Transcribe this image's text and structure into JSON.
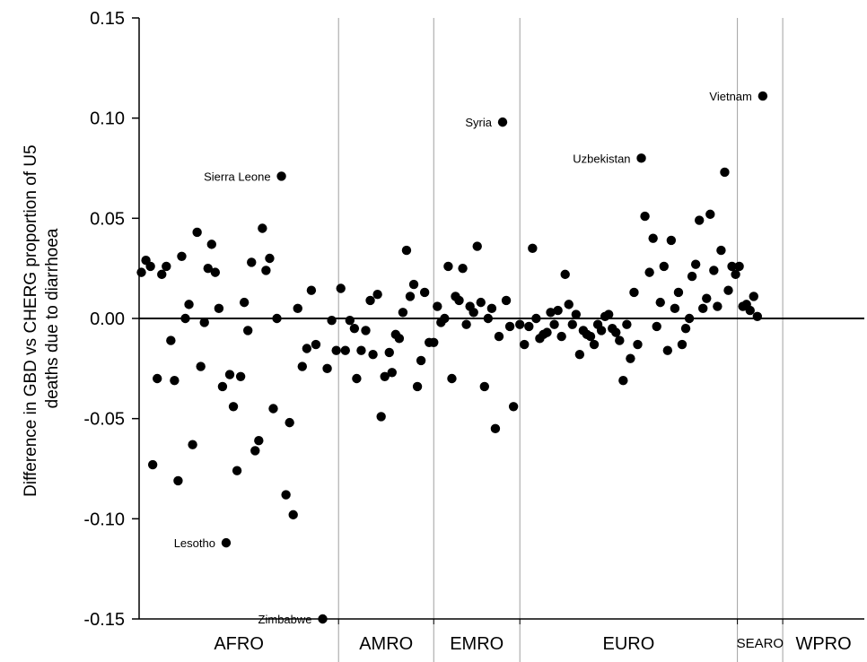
{
  "chart_data": {
    "type": "scatter",
    "title": "",
    "xlabel": "",
    "ylabel_lines": [
      "Difference in GBD vs CHERG proportion of U5",
      "deaths due to diarrhoea"
    ],
    "ylim": [
      -0.15,
      0.15
    ],
    "yticks": [
      "0.15",
      "0.10",
      "0.05",
      "0.00",
      "-0.05",
      "-0.10",
      "-0.15"
    ],
    "ytick_values": [
      0.15,
      0.1,
      0.05,
      0.0,
      -0.05,
      -0.1,
      -0.15
    ],
    "xlim": [
      0,
      160
    ],
    "reference_line_y": 0.0,
    "grid": "vertical region separators",
    "regions": [
      {
        "name": "AFRO",
        "start": 0,
        "end": 44
      },
      {
        "name": "AMRO",
        "start": 44,
        "end": 65
      },
      {
        "name": "EMRO",
        "start": 65,
        "end": 84
      },
      {
        "name": "EURO",
        "start": 84,
        "end": 132
      },
      {
        "name": "SEARO",
        "start": 132,
        "end": 142
      },
      {
        "name": "WPRO",
        "start": 142,
        "end": 160
      }
    ],
    "points": [
      [
        0.5,
        0.023
      ],
      [
        1.5,
        0.029
      ],
      [
        2.5,
        0.026
      ],
      [
        3.0,
        -0.073
      ],
      [
        4.0,
        -0.03
      ],
      [
        5.0,
        0.022
      ],
      [
        6.0,
        0.026
      ],
      [
        7.0,
        -0.011
      ],
      [
        7.8,
        -0.031
      ],
      [
        8.6,
        -0.081
      ],
      [
        9.4,
        0.031
      ],
      [
        10.2,
        0.0
      ],
      [
        11.0,
        0.007
      ],
      [
        11.8,
        -0.063
      ],
      [
        12.8,
        0.043
      ],
      [
        13.6,
        -0.024
      ],
      [
        14.4,
        -0.002
      ],
      [
        15.2,
        0.025
      ],
      [
        16.0,
        0.037
      ],
      [
        16.8,
        0.023
      ],
      [
        17.6,
        0.005
      ],
      [
        18.4,
        -0.034
      ],
      [
        19.2,
        -0.112
      ],
      [
        20.0,
        -0.028
      ],
      [
        20.8,
        -0.044
      ],
      [
        21.6,
        -0.076
      ],
      [
        22.4,
        -0.029
      ],
      [
        23.2,
        0.008
      ],
      [
        24.0,
        -0.006
      ],
      [
        24.8,
        0.028
      ],
      [
        25.6,
        -0.066
      ],
      [
        26.4,
        -0.061
      ],
      [
        27.2,
        0.045
      ],
      [
        28.0,
        0.024
      ],
      [
        28.8,
        0.03
      ],
      [
        29.6,
        -0.045
      ],
      [
        30.4,
        0.0
      ],
      [
        31.4,
        0.071
      ],
      [
        32.4,
        -0.088
      ],
      [
        33.2,
        -0.052
      ],
      [
        34.0,
        -0.098
      ],
      [
        35.0,
        0.005
      ],
      [
        36.0,
        -0.024
      ],
      [
        37.0,
        -0.015
      ],
      [
        38.0,
        0.014
      ],
      [
        39.0,
        -0.013
      ],
      [
        40.5,
        -0.15
      ],
      [
        41.5,
        -0.025
      ],
      [
        42.5,
        -0.001
      ],
      [
        43.5,
        -0.016
      ],
      [
        44.5,
        0.015
      ],
      [
        45.5,
        -0.016
      ],
      [
        46.5,
        -0.001
      ],
      [
        47.5,
        -0.005
      ],
      [
        48.0,
        -0.03
      ],
      [
        49.0,
        -0.016
      ],
      [
        50.0,
        -0.006
      ],
      [
        51.0,
        0.009
      ],
      [
        51.6,
        -0.018
      ],
      [
        52.6,
        0.012
      ],
      [
        53.4,
        -0.049
      ],
      [
        54.2,
        -0.029
      ],
      [
        55.2,
        -0.017
      ],
      [
        55.8,
        -0.027
      ],
      [
        56.6,
        -0.008
      ],
      [
        57.4,
        -0.01
      ],
      [
        58.2,
        0.003
      ],
      [
        59.0,
        0.034
      ],
      [
        59.8,
        0.011
      ],
      [
        60.6,
        0.017
      ],
      [
        61.4,
        -0.034
      ],
      [
        62.2,
        -0.021
      ],
      [
        63.0,
        0.013
      ],
      [
        64.0,
        -0.012
      ],
      [
        65.0,
        -0.012
      ],
      [
        65.8,
        0.006
      ],
      [
        66.6,
        -0.002
      ],
      [
        67.4,
        0.0
      ],
      [
        68.2,
        0.026
      ],
      [
        69.0,
        -0.03
      ],
      [
        69.8,
        0.011
      ],
      [
        70.6,
        0.009
      ],
      [
        71.4,
        0.025
      ],
      [
        72.2,
        -0.003
      ],
      [
        73.0,
        0.006
      ],
      [
        73.8,
        0.003
      ],
      [
        74.6,
        0.036
      ],
      [
        75.4,
        0.008
      ],
      [
        76.2,
        -0.034
      ],
      [
        77.0,
        0.0
      ],
      [
        77.8,
        0.005
      ],
      [
        78.6,
        -0.055
      ],
      [
        79.4,
        -0.009
      ],
      [
        80.2,
        0.098
      ],
      [
        81.0,
        0.009
      ],
      [
        81.8,
        -0.004
      ],
      [
        82.6,
        -0.044
      ],
      [
        84.0,
        -0.003
      ],
      [
        85.0,
        -0.013
      ],
      [
        86.0,
        -0.004
      ],
      [
        86.8,
        0.035
      ],
      [
        87.6,
        0.0
      ],
      [
        88.4,
        -0.01
      ],
      [
        89.2,
        -0.008
      ],
      [
        90.0,
        -0.007
      ],
      [
        90.8,
        0.003
      ],
      [
        91.6,
        -0.003
      ],
      [
        92.4,
        0.004
      ],
      [
        93.2,
        -0.009
      ],
      [
        94.0,
        0.022
      ],
      [
        94.8,
        0.007
      ],
      [
        95.6,
        -0.003
      ],
      [
        96.4,
        0.002
      ],
      [
        97.2,
        -0.018
      ],
      [
        98.0,
        -0.006
      ],
      [
        98.8,
        -0.008
      ],
      [
        99.6,
        -0.009
      ],
      [
        100.4,
        -0.013
      ],
      [
        101.2,
        -0.003
      ],
      [
        102.0,
        -0.006
      ],
      [
        102.8,
        0.001
      ],
      [
        103.6,
        0.002
      ],
      [
        104.4,
        -0.005
      ],
      [
        105.2,
        -0.007
      ],
      [
        106.0,
        -0.011
      ],
      [
        106.8,
        -0.031
      ],
      [
        107.6,
        -0.003
      ],
      [
        108.4,
        -0.02
      ],
      [
        109.2,
        0.013
      ],
      [
        110.0,
        -0.013
      ],
      [
        110.8,
        0.08
      ],
      [
        111.6,
        0.051
      ],
      [
        112.6,
        0.023
      ],
      [
        113.4,
        0.04
      ],
      [
        114.2,
        -0.004
      ],
      [
        115.0,
        0.008
      ],
      [
        115.8,
        0.026
      ],
      [
        116.6,
        -0.016
      ],
      [
        117.4,
        0.039
      ],
      [
        118.2,
        0.005
      ],
      [
        119.0,
        0.013
      ],
      [
        119.8,
        -0.013
      ],
      [
        120.6,
        -0.005
      ],
      [
        121.4,
        0.0
      ],
      [
        122.0,
        0.021
      ],
      [
        122.8,
        0.027
      ],
      [
        123.6,
        0.049
      ],
      [
        124.4,
        0.005
      ],
      [
        125.2,
        0.01
      ],
      [
        126.0,
        0.052
      ],
      [
        126.8,
        0.024
      ],
      [
        127.6,
        0.006
      ],
      [
        128.4,
        0.034
      ],
      [
        129.2,
        0.073
      ],
      [
        130.0,
        0.014
      ],
      [
        130.8,
        0.026
      ],
      [
        131.6,
        0.022
      ],
      [
        132.4,
        0.026
      ],
      [
        133.2,
        0.006
      ],
      [
        134.0,
        0.007
      ],
      [
        134.8,
        0.004
      ],
      [
        135.6,
        0.011
      ],
      [
        136.4,
        0.001
      ],
      [
        137.6,
        0.111
      ]
    ],
    "annotations": [
      {
        "text": "Sierra Leone",
        "x": 31.4,
        "y": 0.071
      },
      {
        "text": "Lesotho",
        "x": 19.2,
        "y": -0.112
      },
      {
        "text": "Zimbabwe",
        "x": 40.5,
        "y": -0.15
      },
      {
        "text": "Syria",
        "x": 80.2,
        "y": 0.098
      },
      {
        "text": "Uzbekistan",
        "x": 110.8,
        "y": 0.08
      },
      {
        "text": "Vietnam",
        "x": 137.6,
        "y": 0.111
      }
    ]
  }
}
